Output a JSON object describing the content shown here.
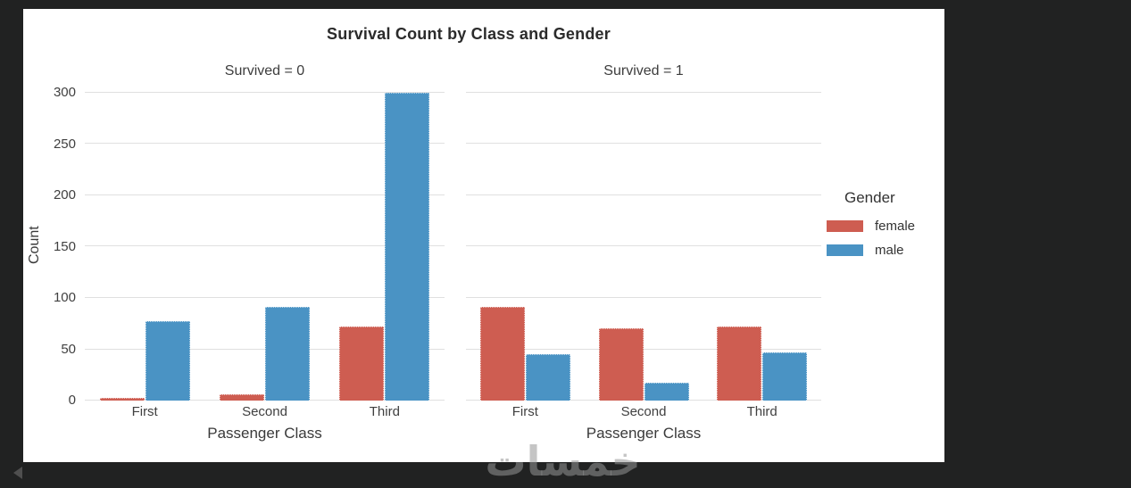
{
  "watermark": "خمسات",
  "chart_data": {
    "type": "bar",
    "title": "Survival Count by Class and Gender",
    "xlabel": "Passenger Class",
    "ylabel": "Count",
    "categories": [
      "First",
      "Second",
      "Third"
    ],
    "facets": [
      {
        "label": "Survived = 0",
        "series": [
          {
            "name": "female",
            "values": [
              3,
              6,
              72
            ]
          },
          {
            "name": "male",
            "values": [
              77,
              91,
              300
            ]
          }
        ]
      },
      {
        "label": "Survived = 1",
        "series": [
          {
            "name": "female",
            "values": [
              91,
              70,
              72
            ]
          },
          {
            "name": "male",
            "values": [
              45,
              17,
              47
            ]
          }
        ]
      }
    ],
    "ylim": [
      0,
      300
    ],
    "yticks": [
      0,
      50,
      100,
      150,
      200,
      250,
      300
    ],
    "grid": true,
    "legend": {
      "title": "Gender",
      "position": "right",
      "entries": [
        {
          "label": "female",
          "color": "#ce5d51"
        },
        {
          "label": "male",
          "color": "#4a93c4"
        }
      ]
    },
    "colors": {
      "background": "#212222",
      "panel": "#ffffff",
      "gridline": "#e0e0e0",
      "female": "#ce5d51",
      "male": "#4a93c4"
    }
  }
}
